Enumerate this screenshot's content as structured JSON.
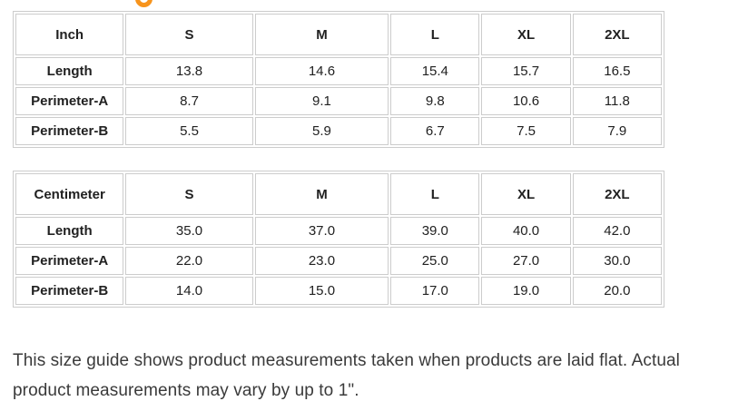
{
  "colors": {
    "accent_orange": "#F7941D",
    "table_border": "#CCCCCC",
    "text": "#212121",
    "note_text": "#3A3A3A"
  },
  "tables": [
    {
      "unit": "Inch",
      "sizes": [
        "S",
        "M",
        "L",
        "XL",
        "2XL"
      ],
      "rows": [
        {
          "label": "Length",
          "values": [
            "13.8",
            "14.6",
            "15.4",
            "15.7",
            "16.5"
          ]
        },
        {
          "label": "Perimeter-A",
          "values": [
            "8.7",
            "9.1",
            "9.8",
            "10.6",
            "11.8"
          ]
        },
        {
          "label": "Perimeter-B",
          "values": [
            "5.5",
            "5.9",
            "6.7",
            "7.5",
            "7.9"
          ]
        }
      ]
    },
    {
      "unit": "Centimeter",
      "sizes": [
        "S",
        "M",
        "L",
        "XL",
        "2XL"
      ],
      "rows": [
        {
          "label": "Length",
          "values": [
            "35.0",
            "37.0",
            "39.0",
            "40.0",
            "42.0"
          ]
        },
        {
          "label": "Perimeter-A",
          "values": [
            "22.0",
            "23.0",
            "25.0",
            "27.0",
            "30.0"
          ]
        },
        {
          "label": "Perimeter-B",
          "values": [
            "14.0",
            "15.0",
            "17.0",
            "19.0",
            "20.0"
          ]
        }
      ]
    }
  ],
  "note": "This size guide shows product measurements taken when products are laid flat. Actual product measurements may vary by up to 1\"."
}
